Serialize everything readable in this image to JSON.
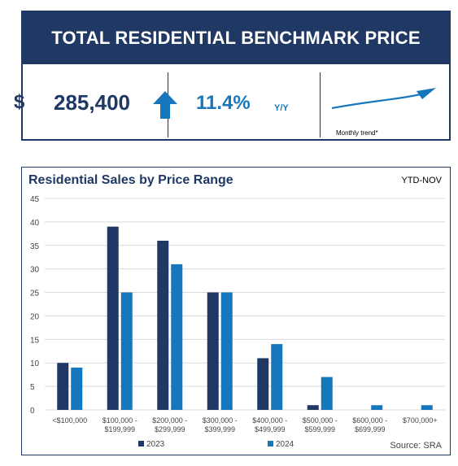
{
  "benchmark": {
    "title": "TOTAL RESIDENTIAL BENCHMARK PRICE",
    "currency_symbol": "$",
    "price": "285,400",
    "direction_icon": "arrow-up-icon",
    "change_pct": "11.4%",
    "change_period": "Y/Y",
    "trend_label": "Monthly trend*",
    "colors": {
      "title_bg": "#1f3864",
      "price": "#1f3864",
      "accent": "#1777bc"
    }
  },
  "chart_data": {
    "type": "bar",
    "title": "Residential Sales by Price Range",
    "period_label": "YTD-NOV",
    "source": "Source: SRA",
    "categories": [
      [
        "<$100,000"
      ],
      [
        "$100,000 -",
        "$199,999"
      ],
      [
        "$200,000 -",
        "$299,999"
      ],
      [
        "$300,000 -",
        "$399,999"
      ],
      [
        "$400,000 -",
        "$499,999"
      ],
      [
        "$500,000 -",
        "$599,999"
      ],
      [
        "$600,000 -",
        "$699,999"
      ],
      [
        "$700,000+"
      ]
    ],
    "series": [
      {
        "name": "2023",
        "color": "#1f3864",
        "values": [
          10,
          39,
          36,
          25,
          11,
          1,
          0,
          0
        ]
      },
      {
        "name": "2024",
        "color": "#1777bc",
        "values": [
          9,
          25,
          31,
          25,
          14,
          7,
          1,
          1
        ]
      }
    ],
    "ylim": [
      0,
      45
    ],
    "yticks": [
      0,
      5,
      10,
      15,
      20,
      25,
      30,
      35,
      40,
      45
    ],
    "grid": true,
    "legend_position": "bottom",
    "xlabel": "",
    "ylabel": ""
  }
}
